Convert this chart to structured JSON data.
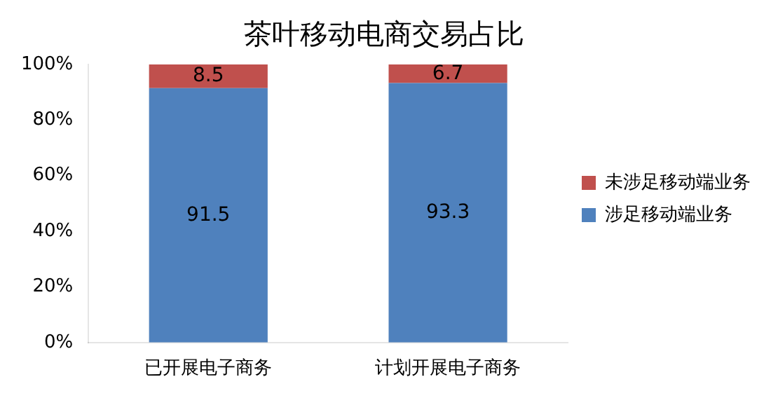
{
  "chart_data": {
    "type": "bar",
    "title": "茶叶移动电商交易占比",
    "stacked": true,
    "categories": [
      "已开展电子商务",
      "计划开展电子商务"
    ],
    "series": [
      {
        "name": "涉足移动端业务",
        "color": "#4f81bd",
        "values": [
          91.5,
          93.3
        ]
      },
      {
        "name": "未涉足移动端业务",
        "color": "#c0504d",
        "values": [
          8.5,
          6.7
        ]
      }
    ],
    "ylim": [
      0,
      100
    ],
    "yticks": [
      {
        "value": 0,
        "label": "0%"
      },
      {
        "value": 20,
        "label": "20%"
      },
      {
        "value": 40,
        "label": "40%"
      },
      {
        "value": 60,
        "label": "60%"
      },
      {
        "value": 80,
        "label": "80%"
      },
      {
        "value": 100,
        "label": "100%"
      }
    ],
    "data_labels": true,
    "legend": "right",
    "grid": false
  }
}
